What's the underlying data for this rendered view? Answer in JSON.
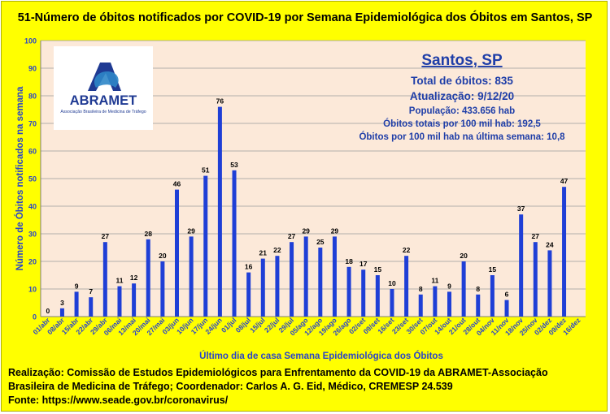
{
  "title": "51-Número de óbitos notificados por COVID-19 por Semana Epidemiológica dos Óbitos  em Santos, SP",
  "logo": {
    "name": "ABRAMET",
    "subtitle": "Associação Brasileira de Medicina de Tráfego"
  },
  "info": {
    "city": "Santos, SP",
    "total": "Total de óbitos: 835",
    "update": "Atualização: 9/12/20",
    "population": "População: 433.656 hab",
    "per100k": "Óbitos totais por 100 mil hab: 192,5",
    "lastweek": "Óbitos por 100 mil hab na última semana: 10,8"
  },
  "footer": {
    "line1": "Realização: Comissão de Estudos Epidemiológicos para Enfrentamento da COVID-19 da ABRAMET-Associação",
    "line2": "Brasileira de Medicina de Tráfego; Coordenador: Carlos A. G. Eid, Médico, CREMESP 24.539",
    "line3": "Fonte: https://www.seade.gov.br/coronavirus/"
  },
  "colors": {
    "background": "#ffff00",
    "plot": "#fce9d9",
    "bar": "#1f3fd6",
    "axis_text": "#2a45c8",
    "info_text": "#1f3ea8"
  },
  "chart_data": {
    "type": "bar",
    "xlabel": "Último dia de casa Semana Epidemiológica dos Óbitos",
    "ylabel": "Número de Óbitos notificados na semana",
    "ylim": [
      0,
      100
    ],
    "yticks": [
      0,
      10,
      20,
      30,
      40,
      50,
      60,
      70,
      80,
      90,
      100
    ],
    "grid": true,
    "categories": [
      "01/abr",
      "08/abr",
      "15/abr",
      "22/abr",
      "29/abr",
      "06/mai",
      "13/mai",
      "20/mai",
      "27/mai",
      "03/jun",
      "10/jun",
      "17/jun",
      "24/jun",
      "01/jul",
      "08/jul",
      "15/jul",
      "22/jul",
      "29/jul",
      "05/ago",
      "12/ago",
      "19/ago",
      "26/ago",
      "02/set",
      "09/set",
      "16/set",
      "23/set",
      "30/set",
      "07/out",
      "14/out",
      "21/out",
      "28/out",
      "04/nov",
      "11/nov",
      "18/nov",
      "25/nov",
      "02/dez",
      "09/dez",
      "16/dez"
    ],
    "values": [
      0,
      3,
      9,
      7,
      27,
      11,
      12,
      28,
      20,
      46,
      29,
      51,
      76,
      53,
      16,
      21,
      22,
      27,
      29,
      25,
      29,
      18,
      17,
      15,
      10,
      22,
      8,
      11,
      9,
      20,
      8,
      15,
      6,
      37,
      27,
      24,
      47,
      null
    ]
  }
}
